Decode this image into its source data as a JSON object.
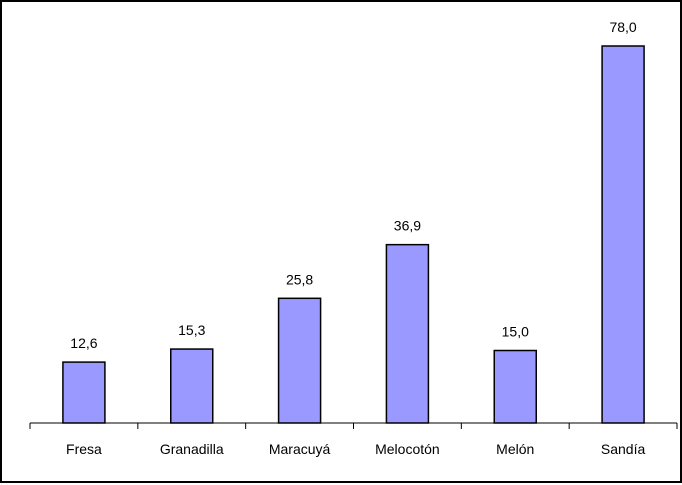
{
  "chart_data": {
    "type": "bar",
    "categories": [
      "Fresa",
      "Granadilla",
      "Maracuyá",
      "Melocotón",
      "Melón",
      "Sandía"
    ],
    "values": [
      12.6,
      15.3,
      25.8,
      36.9,
      15.0,
      78.0
    ],
    "value_labels": [
      "12,6",
      "15,3",
      "25,8",
      "36,9",
      "15,0",
      "78,0"
    ],
    "title": "",
    "xlabel": "",
    "ylabel": "",
    "ylim": [
      0,
      84
    ],
    "grid": false,
    "legend": "none",
    "bar_color": "#9999ff",
    "bar_stroke": "#000000"
  }
}
